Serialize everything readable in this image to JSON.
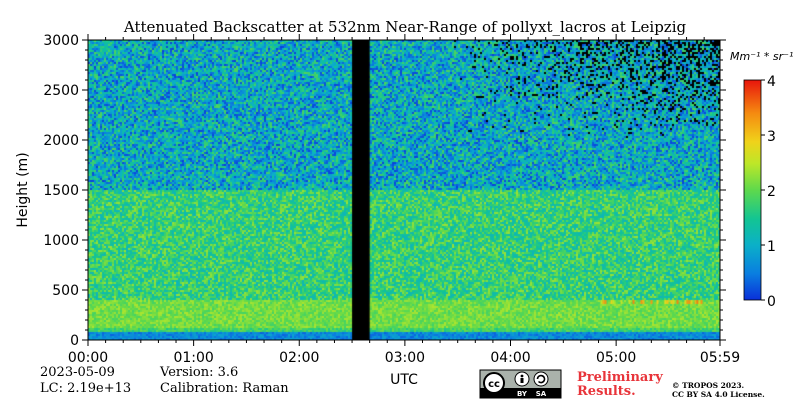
{
  "chart_data": {
    "type": "heatmap",
    "title": "Attenuated Backscatter at 532nm Near-Range of pollyxt_lacros at Leipzig",
    "xlabel": "UTC",
    "ylabel": "Height (m)",
    "xlim": [
      "00:00",
      "05:59"
    ],
    "ylim": [
      0,
      3000
    ],
    "x_ticks": [
      "00:00",
      "01:00",
      "02:00",
      "03:00",
      "04:00",
      "05:00",
      "05:59"
    ],
    "y_ticks": [
      "0",
      "500",
      "1000",
      "1500",
      "2000",
      "2500",
      "3000"
    ],
    "colorbar": {
      "unit": "Mm⁻¹ * sr⁻¹",
      "range": [
        0,
        4
      ],
      "ticks": [
        "0",
        "1",
        "2",
        "3",
        "4"
      ]
    },
    "no_data_interval": [
      "02:30",
      "02:40"
    ],
    "layers": [
      {
        "height_range_m": [
          0,
          90
        ],
        "value": 0.6
      },
      {
        "height_range_m": [
          90,
          130
        ],
        "value": 1.8
      },
      {
        "height_range_m": [
          130,
          400
        ],
        "value": 2.1
      },
      {
        "height_range_m": [
          400,
          1500
        ],
        "value": 1.7
      },
      {
        "height_range_m": [
          1500,
          3000
        ],
        "value": 1.0
      }
    ],
    "features": [
      {
        "time_range": [
          "04:50",
          "05:50"
        ],
        "height_m": 380,
        "value": 3.0
      }
    ]
  },
  "meta": {
    "date": "2023-05-09",
    "lc": "LC: 2.19e+13",
    "version": "Version: 3.6",
    "calibration": "Calibration: Raman"
  },
  "license": {
    "badge_cc": "cc",
    "badge_by": "BY",
    "badge_sa": "SA",
    "prelim_line1": "Preliminary",
    "prelim_line2": "Results.",
    "copy_line1": "© TROPOS 2023.",
    "copy_line2": "CC BY SA 4.0 License."
  }
}
